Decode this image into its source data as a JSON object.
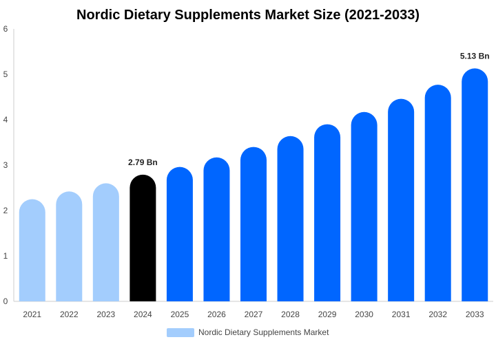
{
  "chart_data": {
    "type": "bar",
    "title": "Nordic Dietary Supplements Market Size (2021-2033)",
    "categories": [
      "2021",
      "2022",
      "2023",
      "2024",
      "2025",
      "2026",
      "2027",
      "2028",
      "2029",
      "2030",
      "2031",
      "2032",
      "2033"
    ],
    "series": [
      {
        "name": "Nordic Dietary Supplements Market",
        "values": [
          2.25,
          2.42,
          2.6,
          2.79,
          2.96,
          3.17,
          3.4,
          3.64,
          3.9,
          4.17,
          4.46,
          4.77,
          5.13
        ]
      }
    ],
    "data_labels": [
      {
        "category": "2024",
        "text": "2.79 Bn"
      },
      {
        "category": "2033",
        "text": "5.13 Bn"
      }
    ],
    "ylim": [
      0,
      6
    ],
    "yticks": [
      0,
      1,
      2,
      3,
      4,
      5,
      6
    ],
    "grid": false,
    "legend": "bottom-center",
    "colors": {
      "historical": "#a3cdfd",
      "base_year": "#000000",
      "forecast": "#0066ff",
      "legend_swatch": "#a3cdfd",
      "axis": "#cccccc"
    }
  }
}
